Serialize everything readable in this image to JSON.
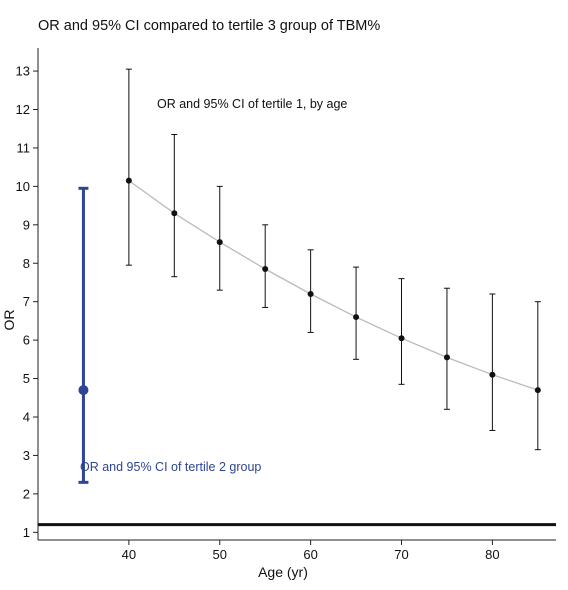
{
  "chart_data": {
    "type": "scatter",
    "title": "OR and 95% CI compared to tertile 3 group of TBM%",
    "xlabel": "Age (yr)",
    "ylabel": "OR",
    "xlim": [
      30,
      87
    ],
    "ylim": [
      0.8,
      13.6
    ],
    "x_ticks": [
      40,
      50,
      60,
      70,
      80
    ],
    "y_ticks": [
      1,
      2,
      3,
      4,
      5,
      6,
      7,
      8,
      9,
      10,
      11,
      12,
      13
    ],
    "grid": false,
    "reference_line": {
      "y": 1.2
    },
    "series": [
      {
        "name": "OR and 95% CI of tertile 1, by age",
        "color": "#111111",
        "trend_color": "#bbbbbb",
        "points": [
          {
            "x": 40,
            "or": 10.15,
            "lower": 7.95,
            "upper": 13.05
          },
          {
            "x": 45,
            "or": 9.3,
            "lower": 7.65,
            "upper": 11.35
          },
          {
            "x": 50,
            "or": 8.55,
            "lower": 7.3,
            "upper": 10.0
          },
          {
            "x": 55,
            "or": 7.85,
            "lower": 6.85,
            "upper": 9.0
          },
          {
            "x": 60,
            "or": 7.2,
            "lower": 6.2,
            "upper": 8.35
          },
          {
            "x": 65,
            "or": 6.6,
            "lower": 5.5,
            "upper": 7.9
          },
          {
            "x": 70,
            "or": 6.05,
            "lower": 4.85,
            "upper": 7.6
          },
          {
            "x": 75,
            "or": 5.55,
            "lower": 4.2,
            "upper": 7.35
          },
          {
            "x": 80,
            "or": 5.1,
            "lower": 3.65,
            "upper": 7.2
          },
          {
            "x": 85,
            "or": 4.7,
            "lower": 3.15,
            "upper": 7.0
          }
        ]
      },
      {
        "name": "OR and 95% CI of tertile 2 group",
        "color": "#2e4593",
        "points": [
          {
            "x": 35,
            "or": 4.7,
            "lower": 2.3,
            "upper": 9.95
          }
        ]
      }
    ]
  }
}
